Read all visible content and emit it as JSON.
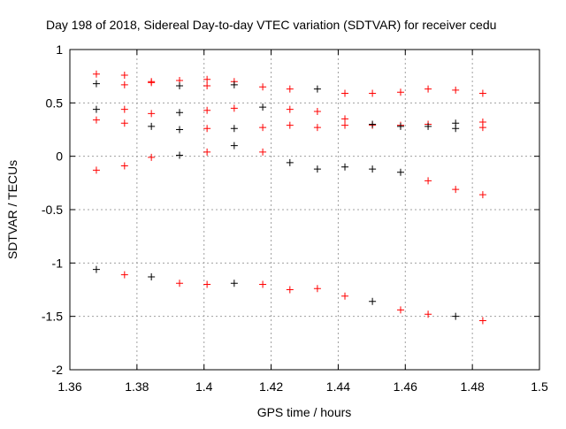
{
  "chart_data": {
    "type": "scatter",
    "title": "Day 198 of 2018, Sidereal Day-to-day VTEC variation (SDTVAR) for receiver cedu",
    "xlabel": "GPS time / hours",
    "ylabel": "SDTVAR / TECUs",
    "xlim": [
      1.36,
      1.5
    ],
    "ylim": [
      -2,
      1
    ],
    "xticks": [
      "1.36",
      "1.38",
      "1.4",
      "1.42",
      "1.44",
      "1.46",
      "1.48",
      "1.5"
    ],
    "xtick_values": [
      1.36,
      1.38,
      1.4,
      1.42,
      1.44,
      1.46,
      1.48,
      1.5
    ],
    "yticks": [
      "1",
      "0.5",
      "0",
      "-0.5",
      "-1",
      "-1.5",
      "-2"
    ],
    "ytick_values": [
      1,
      0.5,
      0,
      -0.5,
      -1,
      -1.5,
      -2
    ],
    "grid": true,
    "x": [
      1.3679,
      1.3763,
      1.3843,
      1.3927,
      1.4009,
      1.409,
      1.4175,
      1.4256,
      1.4338,
      1.442,
      1.4502,
      1.4586,
      1.4668,
      1.475,
      1.4831
    ],
    "series": [
      {
        "name": "red",
        "color": "#ff0000",
        "points": [
          [
            0,
            0.77
          ],
          [
            0,
            0.34
          ],
          [
            0,
            -0.13
          ],
          [
            1,
            0.76
          ],
          [
            1,
            0.67
          ],
          [
            1,
            0.44
          ],
          [
            1,
            0.31
          ],
          [
            1,
            -0.09
          ],
          [
            1,
            -1.11
          ],
          [
            2,
            0.7
          ],
          [
            2,
            0.69
          ],
          [
            2,
            0.4
          ],
          [
            2,
            -0.01
          ],
          [
            3,
            0.71
          ],
          [
            3,
            -1.19
          ],
          [
            4,
            0.72
          ],
          [
            4,
            0.66
          ],
          [
            4,
            0.43
          ],
          [
            4,
            0.26
          ],
          [
            4,
            0.04
          ],
          [
            4,
            -1.2
          ],
          [
            5,
            0.7
          ],
          [
            5,
            0.45
          ],
          [
            6,
            0.65
          ],
          [
            6,
            0.27
          ],
          [
            6,
            0.04
          ],
          [
            6,
            -1.2
          ],
          [
            7,
            0.63
          ],
          [
            7,
            0.44
          ],
          [
            7,
            0.29
          ],
          [
            7,
            -1.25
          ],
          [
            8,
            0.42
          ],
          [
            8,
            0.27
          ],
          [
            8,
            -1.24
          ],
          [
            9,
            0.59
          ],
          [
            9,
            0.35
          ],
          [
            9,
            0.29
          ],
          [
            9,
            -1.31
          ],
          [
            10,
            0.59
          ],
          [
            10,
            0.29
          ],
          [
            11,
            0.6
          ],
          [
            11,
            0.29
          ],
          [
            11,
            -1.44
          ],
          [
            12,
            0.63
          ],
          [
            12,
            0.3
          ],
          [
            12,
            -0.23
          ],
          [
            12,
            -1.48
          ],
          [
            13,
            0.62
          ],
          [
            13,
            -0.31
          ],
          [
            14,
            0.59
          ],
          [
            14,
            0.32
          ],
          [
            14,
            0.27
          ],
          [
            14,
            -0.36
          ],
          [
            14,
            -1.54
          ]
        ]
      },
      {
        "name": "black",
        "color": "#000000",
        "points": [
          [
            0,
            0.68
          ],
          [
            0,
            0.44
          ],
          [
            0,
            -1.06
          ],
          [
            2,
            0.28
          ],
          [
            2,
            -1.13
          ],
          [
            3,
            0.66
          ],
          [
            3,
            0.41
          ],
          [
            3,
            0.25
          ],
          [
            3,
            0.01
          ],
          [
            5,
            0.67
          ],
          [
            5,
            0.26
          ],
          [
            5,
            0.1
          ],
          [
            5,
            -1.19
          ],
          [
            6,
            0.46
          ],
          [
            7,
            -0.06
          ],
          [
            8,
            0.63
          ],
          [
            8,
            -0.12
          ],
          [
            9,
            -0.1
          ],
          [
            10,
            0.3
          ],
          [
            10,
            -0.12
          ],
          [
            10,
            -1.36
          ],
          [
            11,
            0.28
          ],
          [
            11,
            -0.15
          ],
          [
            12,
            0.28
          ],
          [
            13,
            0.31
          ],
          [
            13,
            0.26
          ],
          [
            13,
            -1.5
          ]
        ]
      }
    ]
  }
}
